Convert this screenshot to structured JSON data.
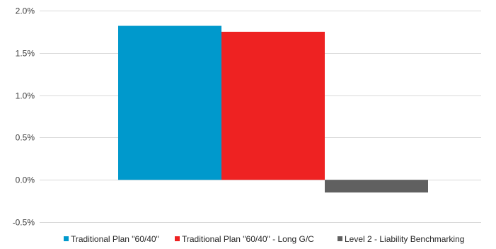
{
  "chart_data": {
    "type": "bar",
    "categories": [
      ""
    ],
    "series": [
      {
        "name": "Traditional Plan \"60/40\"",
        "values": [
          1.82
        ],
        "color": "#0099CC"
      },
      {
        "name": "Traditional  Plan \"60/40\" - Long G/C",
        "values": [
          1.75
        ],
        "color": "#EE2222"
      },
      {
        "name": "Level 2 - Liability Benchmarking",
        "values": [
          -0.15
        ],
        "color": "#606060"
      }
    ],
    "y_ticks": [
      "2.0%",
      "1.5%",
      "1.0%",
      "0.5%",
      "0.0%",
      "-0.5%"
    ],
    "ylim": [
      -0.5,
      2.0
    ],
    "unit": "%",
    "grid": true,
    "legend_position": "bottom"
  }
}
